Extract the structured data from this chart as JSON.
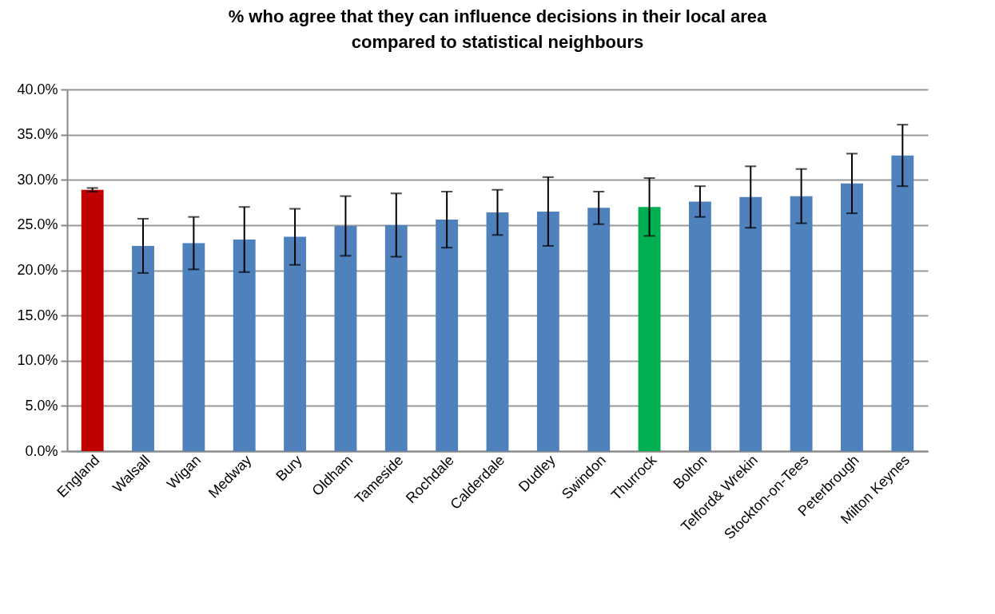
{
  "chart_data": {
    "type": "bar",
    "title": "%  who agree that they can influence decisions in their local area compared to statistical neighbours",
    "categories": [
      "England",
      "Walsall",
      "Wigan",
      "Medway",
      "Bury",
      "Oldham",
      "Tameside",
      "Rochdale",
      "Calderdale",
      "Dudley",
      "Swindon",
      "Thurrock",
      "Bolton",
      "Telford& Wrekin",
      "Stockton-on-Tees",
      "Peterbrough",
      "Milton Keynes"
    ],
    "values": [
      28.9,
      22.7,
      23.0,
      23.4,
      23.7,
      24.9,
      25.0,
      25.6,
      26.4,
      26.5,
      26.9,
      27.0,
      27.6,
      28.1,
      28.2,
      29.6,
      32.7
    ],
    "errors": [
      [
        28.7,
        29.1
      ],
      [
        19.7,
        25.7
      ],
      [
        20.1,
        25.9
      ],
      [
        19.8,
        27.0
      ],
      [
        20.6,
        26.8
      ],
      [
        21.6,
        28.2
      ],
      [
        21.5,
        28.5
      ],
      [
        22.5,
        28.7
      ],
      [
        23.9,
        28.9
      ],
      [
        22.7,
        30.3
      ],
      [
        25.1,
        28.7
      ],
      [
        23.8,
        30.2
      ],
      [
        25.9,
        29.3
      ],
      [
        24.7,
        31.5
      ],
      [
        25.2,
        31.2
      ],
      [
        26.3,
        32.9
      ],
      [
        29.3,
        36.1
      ]
    ],
    "colors": [
      "#c00000",
      "#4f81bd",
      "#4f81bd",
      "#4f81bd",
      "#4f81bd",
      "#4f81bd",
      "#4f81bd",
      "#4f81bd",
      "#4f81bd",
      "#4f81bd",
      "#4f81bd",
      "#00b050",
      "#4f81bd",
      "#4f81bd",
      "#4f81bd",
      "#4f81bd",
      "#4f81bd"
    ],
    "ylim": [
      0,
      40
    ],
    "yticks": [
      {
        "value": 0,
        "label": "0.0%"
      },
      {
        "value": 5,
        "label": "5.0%"
      },
      {
        "value": 10,
        "label": "10.0%"
      },
      {
        "value": 15,
        "label": "15.0%"
      },
      {
        "value": 20,
        "label": "20.0%"
      },
      {
        "value": 25,
        "label": "25.0%"
      },
      {
        "value": 30,
        "label": "30.0%"
      },
      {
        "value": 35,
        "label": "35.0%"
      },
      {
        "value": 40,
        "label": "40.0%"
      }
    ],
    "grid": "y",
    "legend": false
  }
}
